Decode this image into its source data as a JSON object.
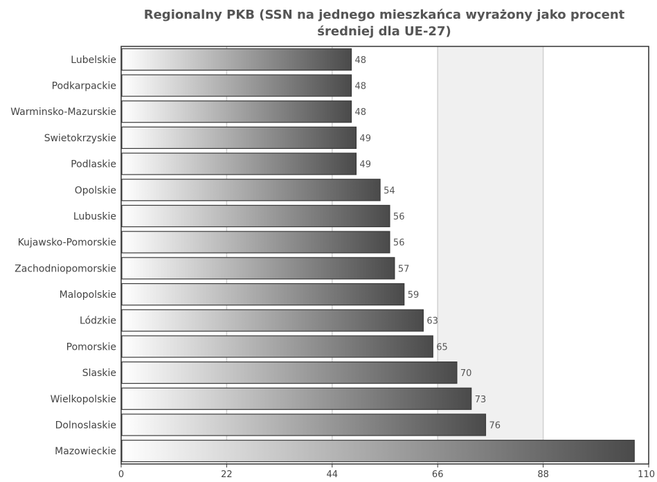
{
  "chart_data": {
    "type": "bar",
    "orientation": "horizontal",
    "title": "Regionalny PKB (SSN na jednego mieszkańca wyrażony jako procent średniej dla UE-27)",
    "title_lines": [
      "Regionalny PKB (SSN na jednego mieszkańca wyrażony jako procent",
      "średniej dla UE-27)"
    ],
    "categories": [
      "Lubelskie",
      "Podkarpackie",
      "Warminsko-Mazurskie",
      "Swietokrzyskie",
      "Podlaskie",
      "Opolskie",
      "Lubuskie",
      "Kujawsko-Pomorskie",
      "Zachodniopomorskie",
      "Malopolskie",
      "Lódzkie",
      "Pomorskie",
      "Slaskie",
      "Wielkopolskie",
      "Dolnoslaskie",
      "Mazowieckie"
    ],
    "values": [
      48,
      48,
      48,
      49,
      49,
      54,
      56,
      56,
      57,
      59,
      63,
      65,
      70,
      73,
      76,
      107
    ],
    "value_labels": [
      "48",
      "48",
      "48",
      "49",
      "49",
      "54",
      "56",
      "56",
      "57",
      "59",
      "63",
      "65",
      "70",
      "73",
      "76",
      ""
    ],
    "xlim": [
      0,
      110
    ],
    "x_ticks": [
      0,
      22,
      44,
      66,
      88,
      110
    ],
    "x_tick_labels": [
      "0",
      "22",
      "44",
      "66",
      "88",
      "110"
    ],
    "xlabel": "",
    "ylabel": "",
    "grid": true,
    "highlight_band": [
      66,
      88
    ],
    "colors": {
      "bar_start": "#ffffff",
      "bar_end": "#4a4a4a",
      "bar_stroke": "#3a3a3a",
      "grid": "#d0d0d0",
      "band": "#f0f0f0",
      "axis": "#333333",
      "title": "#555555"
    }
  }
}
